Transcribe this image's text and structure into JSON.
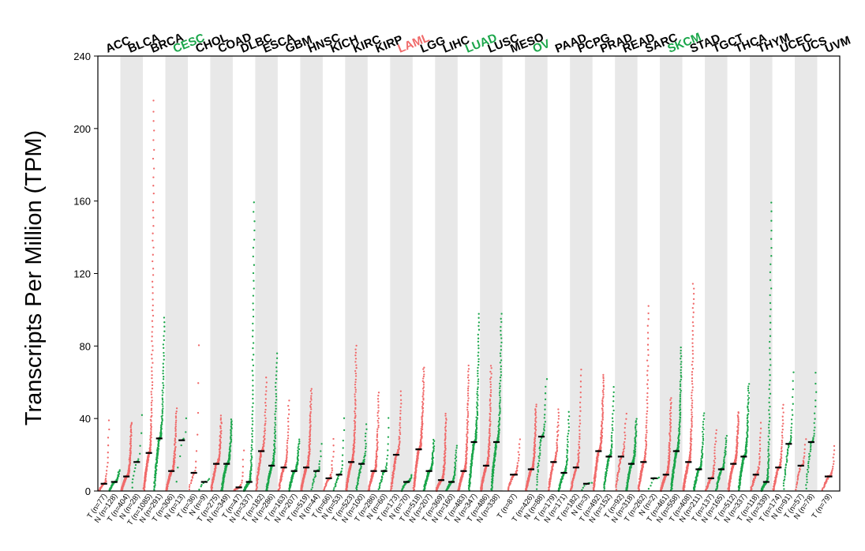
{
  "chart_data": {
    "type": "scatter",
    "title": "",
    "xlabel": "",
    "ylabel": "Transcripts Per Million (TPM)",
    "ylim": [
      0,
      240
    ],
    "yticks": [
      0,
      40,
      80,
      120,
      160,
      200,
      240
    ],
    "grid": false,
    "alternating_background": true,
    "colors": {
      "tumor": "#f06a6a",
      "normal": "#1aa64a",
      "median": "#000000",
      "band": "#e8e8e8",
      "highlight_up": "#f06a6a",
      "highlight_down": "#1aa64a"
    },
    "cancers": [
      {
        "name": "ACC",
        "color": "#000000",
        "tumor": {
          "label": "T (n=77)",
          "n": 77,
          "median": 4,
          "max": 42
        },
        "normal": {
          "label": "N (n=128)",
          "n": 128,
          "median": 5,
          "max": 12
        }
      },
      {
        "name": "BLCA",
        "color": "#000000",
        "tumor": {
          "label": "T (n=404)",
          "n": 404,
          "median": 8,
          "max": 38
        },
        "normal": {
          "label": "N (n=28)",
          "n": 28,
          "median": 16,
          "max": 48
        }
      },
      {
        "name": "BRCA",
        "color": "#000000",
        "tumor": {
          "label": "T (n=1085)",
          "n": 1085,
          "median": 21,
          "max": 218
        },
        "normal": {
          "label": "N (n=291)",
          "n": 291,
          "median": 29,
          "max": 97
        }
      },
      {
        "name": "CESC",
        "color": "#1aa64a",
        "tumor": {
          "label": "T (n=306)",
          "n": 306,
          "median": 11,
          "max": 46
        },
        "normal": {
          "label": "N (n=13)",
          "n": 13,
          "median": 28,
          "max": 47
        }
      },
      {
        "name": "CHOL",
        "color": "#000000",
        "tumor": {
          "label": "T (n=36)",
          "n": 36,
          "median": 10,
          "max": 93
        },
        "normal": {
          "label": "N (n=9)",
          "n": 9,
          "median": 5,
          "max": 8
        }
      },
      {
        "name": "COAD",
        "color": "#000000",
        "tumor": {
          "label": "T (n=275)",
          "n": 275,
          "median": 15,
          "max": 42
        },
        "normal": {
          "label": "N (n=349)",
          "n": 349,
          "median": 15,
          "max": 40
        }
      },
      {
        "name": "DLBC",
        "color": "#000000",
        "tumor": {
          "label": "T (n=47)",
          "n": 47,
          "median": 2,
          "max": 25
        },
        "normal": {
          "label": "N (n=337)",
          "n": 337,
          "median": 5,
          "max": 162
        }
      },
      {
        "name": "ESCA",
        "color": "#000000",
        "tumor": {
          "label": "T (n=182)",
          "n": 182,
          "median": 22,
          "max": 64
        },
        "normal": {
          "label": "N (n=286)",
          "n": 286,
          "median": 14,
          "max": 77
        }
      },
      {
        "name": "GBM",
        "color": "#000000",
        "tumor": {
          "label": "T (n=163)",
          "n": 163,
          "median": 13,
          "max": 51
        },
        "normal": {
          "label": "N (n=207)",
          "n": 207,
          "median": 11,
          "max": 29
        }
      },
      {
        "name": "HNSC",
        "color": "#000000",
        "tumor": {
          "label": "T (n=519)",
          "n": 519,
          "median": 13,
          "max": 57
        },
        "normal": {
          "label": "N (n=44)",
          "n": 44,
          "median": 11,
          "max": 28
        }
      },
      {
        "name": "KICH",
        "color": "#000000",
        "tumor": {
          "label": "T (n=66)",
          "n": 66,
          "median": 7,
          "max": 31
        },
        "normal": {
          "label": "N (n=53)",
          "n": 53,
          "median": 9,
          "max": 44
        }
      },
      {
        "name": "KIRC",
        "color": "#000000",
        "tumor": {
          "label": "T (n=523)",
          "n": 523,
          "median": 16,
          "max": 81
        },
        "normal": {
          "label": "N (n=100)",
          "n": 100,
          "median": 15,
          "max": 38
        }
      },
      {
        "name": "KIRP",
        "color": "#000000",
        "tumor": {
          "label": "T (n=286)",
          "n": 286,
          "median": 11,
          "max": 55
        },
        "normal": {
          "label": "N (n=60)",
          "n": 60,
          "median": 11,
          "max": 43
        }
      },
      {
        "name": "LAML",
        "color": "#f06a6a",
        "tumor": {
          "label": "T (n=173)",
          "n": 173,
          "median": 20,
          "max": 56
        },
        "normal": {
          "label": "N (n=70)",
          "n": 70,
          "median": 5,
          "max": 9
        }
      },
      {
        "name": "LGG",
        "color": "#000000",
        "tumor": {
          "label": "T (n=518)",
          "n": 518,
          "median": 23,
          "max": 69
        },
        "normal": {
          "label": "N (n=207)",
          "n": 207,
          "median": 11,
          "max": 29
        }
      },
      {
        "name": "LIHC",
        "color": "#000000",
        "tumor": {
          "label": "T (n=369)",
          "n": 369,
          "median": 6,
          "max": 43
        },
        "normal": {
          "label": "N (n=160)",
          "n": 160,
          "median": 5,
          "max": 26
        }
      },
      {
        "name": "LUAD",
        "color": "#1aa64a",
        "tumor": {
          "label": "T (n=483)",
          "n": 483,
          "median": 11,
          "max": 70
        },
        "normal": {
          "label": "N (n=347)",
          "n": 347,
          "median": 27,
          "max": 99
        }
      },
      {
        "name": "LUSC",
        "color": "#000000",
        "tumor": {
          "label": "T (n=486)",
          "n": 486,
          "median": 14,
          "max": 70
        },
        "normal": {
          "label": "N (n=338)",
          "n": 338,
          "median": 27,
          "max": 99
        }
      },
      {
        "name": "MESO",
        "color": "#000000",
        "tumor": {
          "label": "T (n=87)",
          "n": 87,
          "median": 9,
          "max": 30
        },
        "normal": null
      },
      {
        "name": "OV",
        "color": "#1aa64a",
        "tumor": {
          "label": "T (n=426)",
          "n": 426,
          "median": 12,
          "max": 48
        },
        "normal": {
          "label": "N (n=88)",
          "n": 88,
          "median": 30,
          "max": 64
        }
      },
      {
        "name": "PAAD",
        "color": "#000000",
        "tumor": {
          "label": "T (n=179)",
          "n": 179,
          "median": 16,
          "max": 46
        },
        "normal": {
          "label": "N (n=171)",
          "n": 171,
          "median": 10,
          "max": 45
        }
      },
      {
        "name": "PCPG",
        "color": "#000000",
        "tumor": {
          "label": "T (n=182)",
          "n": 182,
          "median": 13,
          "max": 69
        },
        "normal": {
          "label": "N (n=3)",
          "n": 3,
          "median": 4,
          "max": 5
        }
      },
      {
        "name": "PRAD",
        "color": "#000000",
        "tumor": {
          "label": "T (n=492)",
          "n": 492,
          "median": 22,
          "max": 65
        },
        "normal": {
          "label": "N (n=152)",
          "n": 152,
          "median": 19,
          "max": 59
        }
      },
      {
        "name": "READ",
        "color": "#000000",
        "tumor": {
          "label": "T (n=92)",
          "n": 92,
          "median": 19,
          "max": 44
        },
        "normal": {
          "label": "N (n=318)",
          "n": 318,
          "median": 15,
          "max": 40
        }
      },
      {
        "name": "SARC",
        "color": "#000000",
        "tumor": {
          "label": "T (n=262)",
          "n": 262,
          "median": 16,
          "max": 104
        },
        "normal": {
          "label": "N (n=2)",
          "n": 2,
          "median": 7,
          "max": 8
        }
      },
      {
        "name": "SKCM",
        "color": "#1aa64a",
        "tumor": {
          "label": "T (n=461)",
          "n": 461,
          "median": 9,
          "max": 52
        },
        "normal": {
          "label": "N (n=558)",
          "n": 558,
          "median": 22,
          "max": 80
        }
      },
      {
        "name": "STAD",
        "color": "#000000",
        "tumor": {
          "label": "T (n=408)",
          "n": 408,
          "median": 16,
          "max": 116
        },
        "normal": {
          "label": "N (n=211)",
          "n": 211,
          "median": 12,
          "max": 44
        }
      },
      {
        "name": "TGCT",
        "color": "#000000",
        "tumor": {
          "label": "T (n=137)",
          "n": 137,
          "median": 7,
          "max": 35
        },
        "normal": {
          "label": "N (n=165)",
          "n": 165,
          "median": 12,
          "max": 31
        }
      },
      {
        "name": "THCA",
        "color": "#000000",
        "tumor": {
          "label": "T (n=512)",
          "n": 512,
          "median": 15,
          "max": 44
        },
        "normal": {
          "label": "N (n=337)",
          "n": 337,
          "median": 19,
          "max": 60
        }
      },
      {
        "name": "THYM",
        "color": "#000000",
        "tumor": {
          "label": "T (n=118)",
          "n": 118,
          "median": 9,
          "max": 39
        },
        "normal": {
          "label": "N (n=339)",
          "n": 339,
          "median": 5,
          "max": 162
        }
      },
      {
        "name": "UCEC",
        "color": "#000000",
        "tumor": {
          "label": "T (n=174)",
          "n": 174,
          "median": 13,
          "max": 49
        },
        "normal": {
          "label": "N (n=91)",
          "n": 91,
          "median": 26,
          "max": 68
        }
      },
      {
        "name": "UCS",
        "color": "#000000",
        "tumor": {
          "label": "T (n=57)",
          "n": 57,
          "median": 14,
          "max": 30
        },
        "normal": {
          "label": "N (n=78)",
          "n": 78,
          "median": 27,
          "max": 68
        }
      },
      {
        "name": "UVM",
        "color": "#000000",
        "tumor": {
          "label": "T (n=79)",
          "n": 79,
          "median": 8,
          "max": 26
        },
        "normal": null
      }
    ]
  }
}
